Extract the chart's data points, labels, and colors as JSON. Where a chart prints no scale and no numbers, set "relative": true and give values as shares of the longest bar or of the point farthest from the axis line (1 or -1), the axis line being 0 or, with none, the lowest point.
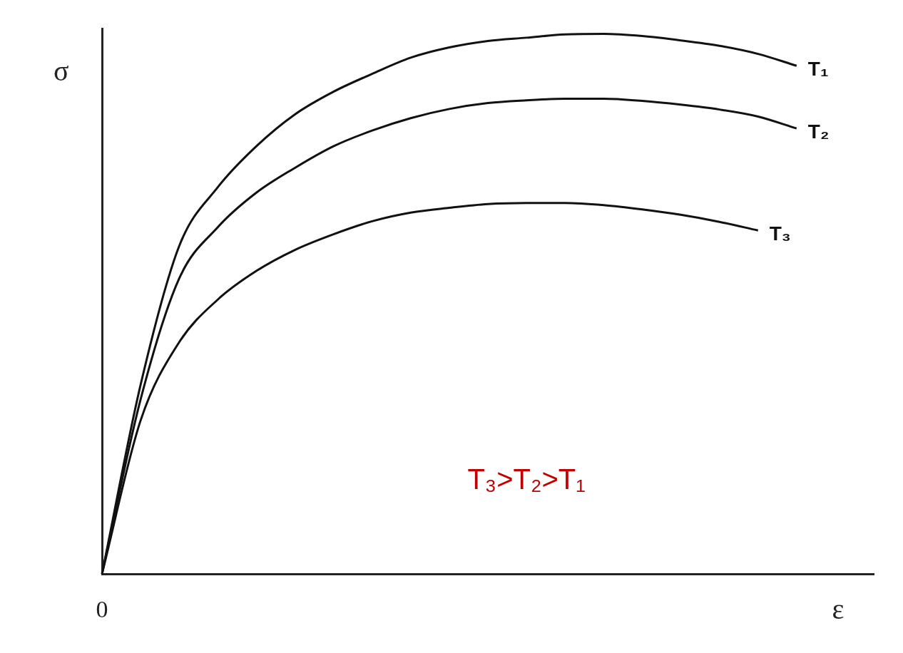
{
  "chart_data": {
    "type": "line",
    "relative": true,
    "xlabel": "ε",
    "ylabel": "σ",
    "categories": [
      null,
      null,
      null,
      null,
      null,
      null,
      null,
      null,
      null,
      null,
      null,
      null,
      null,
      null,
      null,
      null,
      null,
      null,
      null,
      null,
      null
    ],
    "series": [
      {
        "name": "T₁",
        "color": "#111111",
        "values": [
          0,
          0.35,
          0.607,
          0.716,
          0.792,
          0.851,
          0.893,
          0.926,
          0.956,
          0.975,
          0.987,
          0.993,
          0.999,
          1,
          0.996,
          0.988,
          0.978,
          0.963,
          0.941,
          null,
          null
        ]
      },
      {
        "name": "T₂",
        "color": "#111111",
        "values": [
          0,
          0.323,
          0.547,
          0.642,
          0.706,
          0.752,
          0.792,
          0.821,
          0.844,
          0.861,
          0.872,
          0.877,
          0.88,
          0.88,
          0.876,
          0.869,
          0.86,
          0.847,
          0.825,
          null,
          null
        ]
      },
      {
        "name": "T₃",
        "color": "#111111",
        "values": [
          0,
          0.284,
          0.429,
          0.508,
          0.561,
          0.6,
          0.629,
          0.653,
          0.669,
          0.678,
          0.685,
          0.687,
          0.687,
          0.683,
          0.675,
          0.665,
          0.652,
          0.636,
          null,
          null,
          null
        ]
      }
    ],
    "annotations": [
      "0",
      {
        "text": "T₃>T₂>T₁"
      }
    ]
  }
}
